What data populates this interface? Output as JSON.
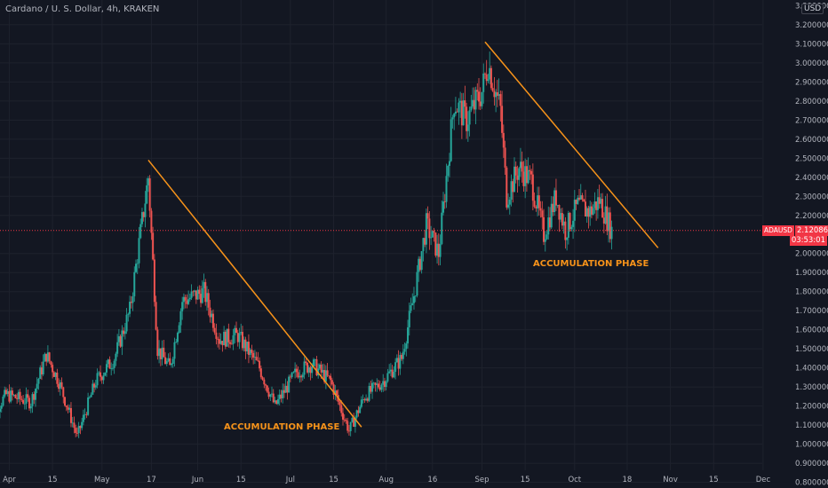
{
  "header": {
    "title": "Cardano / U. S. Dollar, 4h, KRAKEN"
  },
  "axis": {
    "currency_label": "USD",
    "y_ticks": [
      3.2,
      3.1,
      3.0,
      2.9,
      2.8,
      2.7,
      2.6,
      2.5,
      2.4,
      2.3,
      2.2,
      2.0,
      1.9,
      1.8,
      1.7,
      1.6,
      1.5,
      1.4,
      1.3,
      1.2,
      1.1,
      1.0,
      0.9,
      0.8
    ],
    "y_tick_labels": [
      "3.200000",
      "3.100000",
      "3.000000",
      "2.900000",
      "2.800000",
      "2.700000",
      "2.600000",
      "2.500000",
      "2.400000",
      "2.300000",
      "2.200000",
      "2.000000",
      "1.900000",
      "1.800000",
      "1.700000",
      "1.600000",
      "1.500000",
      "1.400000",
      "1.300000",
      "1.200000",
      "1.100000",
      "1.000000",
      "0.900000",
      "0.800000"
    ],
    "top_tick_partial": "3.300000",
    "x_ticks": [
      "Apr",
      "15",
      "May",
      "17",
      "Jun",
      "15",
      "Jul",
      "15",
      "Aug",
      "16",
      "Sep",
      "15",
      "Oct",
      "18",
      "Nov",
      "15",
      "Dec"
    ]
  },
  "current": {
    "symbol": "ADAUSD",
    "price": "2.120864",
    "countdown": "03:53:01",
    "value": 2.120864
  },
  "annotations": [
    {
      "text": "ACCUMULATION PHASE",
      "color": "#f7931a"
    },
    {
      "text": "ACCUMULATION PHASE",
      "color": "#f7931a"
    }
  ],
  "colors": {
    "up": "#26a69a",
    "down": "#ef5350",
    "trendline": "#f7931a",
    "background": "#131722"
  },
  "chart_data": {
    "type": "candlestick",
    "title": "Cardano / U. S. Dollar, 4h, KRAKEN",
    "ylim": [
      0.77,
      3.33
    ],
    "trendlines": [
      {
        "from": {
          "date": "2021-05-16",
          "price": 2.49
        },
        "to": {
          "date": "2021-07-24",
          "price": 1.09
        }
      },
      {
        "from": {
          "date": "2021-09-02",
          "price": 3.11
        },
        "to": {
          "date": "2021-10-28",
          "price": 2.03
        }
      }
    ],
    "series_anchors": [
      {
        "date": "2021-03-25",
        "close": 1.12
      },
      {
        "date": "2021-03-31",
        "close": 1.26
      },
      {
        "date": "2021-04-08",
        "close": 1.22
      },
      {
        "date": "2021-04-13",
        "close": 1.47
      },
      {
        "date": "2021-04-17",
        "close": 1.33
      },
      {
        "date": "2021-04-23",
        "close": 1.04
      },
      {
        "date": "2021-04-29",
        "close": 1.33
      },
      {
        "date": "2021-05-05",
        "close": 1.45
      },
      {
        "date": "2021-05-10",
        "close": 1.7
      },
      {
        "date": "2021-05-16",
        "close": 2.4
      },
      {
        "date": "2021-05-19",
        "close": 1.5
      },
      {
        "date": "2021-05-23",
        "close": 1.4
      },
      {
        "date": "2021-05-27",
        "close": 1.75
      },
      {
        "date": "2021-06-03",
        "close": 1.8
      },
      {
        "date": "2021-06-08",
        "close": 1.55
      },
      {
        "date": "2021-06-14",
        "close": 1.57
      },
      {
        "date": "2021-06-21",
        "close": 1.4
      },
      {
        "date": "2021-06-26",
        "close": 1.2
      },
      {
        "date": "2021-07-03",
        "close": 1.38
      },
      {
        "date": "2021-07-08",
        "close": 1.42
      },
      {
        "date": "2021-07-14",
        "close": 1.33
      },
      {
        "date": "2021-07-20",
        "close": 1.07
      },
      {
        "date": "2021-07-25",
        "close": 1.25
      },
      {
        "date": "2021-07-31",
        "close": 1.33
      },
      {
        "date": "2021-08-06",
        "close": 1.45
      },
      {
        "date": "2021-08-10",
        "close": 1.78
      },
      {
        "date": "2021-08-14",
        "close": 2.15
      },
      {
        "date": "2021-08-18",
        "close": 2.0
      },
      {
        "date": "2021-08-23",
        "close": 2.8
      },
      {
        "date": "2021-08-27",
        "close": 2.7
      },
      {
        "date": "2021-09-01",
        "close": 2.85
      },
      {
        "date": "2021-09-03",
        "close": 3.0
      },
      {
        "date": "2021-09-07",
        "close": 2.75
      },
      {
        "date": "2021-09-09",
        "close": 2.3
      },
      {
        "date": "2021-09-13",
        "close": 2.45
      },
      {
        "date": "2021-09-17",
        "close": 2.38
      },
      {
        "date": "2021-09-21",
        "close": 2.1
      },
      {
        "date": "2021-09-25",
        "close": 2.3
      },
      {
        "date": "2021-09-28",
        "close": 2.12
      },
      {
        "date": "2021-10-02",
        "close": 2.25
      },
      {
        "date": "2021-10-06",
        "close": 2.22
      },
      {
        "date": "2021-10-09",
        "close": 2.28
      },
      {
        "date": "2021-10-13",
        "close": 2.12
      }
    ]
  }
}
